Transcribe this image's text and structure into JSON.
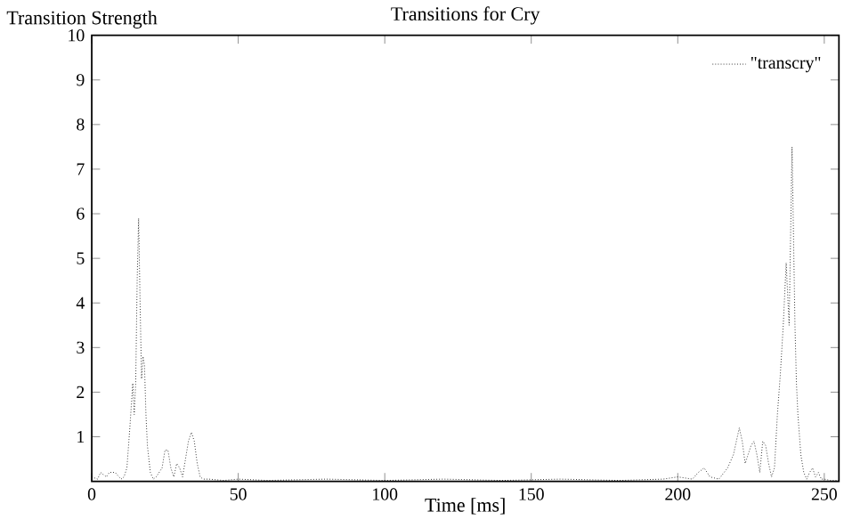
{
  "chart_data": {
    "type": "line",
    "title": "Transitions for Cry",
    "ylabel": "Transition Strength",
    "xlabel": "Time [ms]",
    "xlim": [
      0,
      255
    ],
    "ylim": [
      0,
      10
    ],
    "xticks": [
      0,
      50,
      100,
      150,
      200,
      250
    ],
    "yticks": [
      {
        "value": 0,
        "label": null
      },
      1,
      2,
      3,
      4,
      5,
      6,
      7,
      8,
      9,
      10
    ],
    "legend": "top right",
    "line_style": "dotted",
    "series": [
      {
        "name": "\"transcry\"",
        "color": "#000000",
        "x": [
          0,
          2,
          3,
          5,
          6,
          8,
          10,
          11,
          12,
          13,
          14,
          14.5,
          15,
          15.5,
          16,
          16.5,
          17,
          17.5,
          18,
          18.5,
          19,
          20,
          21,
          22,
          24,
          25,
          26,
          27,
          28,
          29,
          30,
          31,
          32,
          33,
          34,
          35,
          36,
          37,
          38,
          40,
          45,
          50,
          60,
          80,
          100,
          120,
          140,
          160,
          180,
          195,
          200,
          205,
          207,
          209,
          211,
          214,
          217,
          219,
          221,
          222,
          223,
          225,
          226,
          227,
          228,
          229,
          230,
          231,
          232,
          233,
          234,
          235,
          236,
          237,
          237.5,
          238,
          238.5,
          239,
          239.5,
          240,
          240.5,
          241,
          242,
          243,
          244,
          245,
          246,
          247,
          248,
          249,
          250,
          252,
          255
        ],
        "values": [
          0.1,
          0.05,
          0.2,
          0.1,
          0.2,
          0.2,
          0.05,
          0.1,
          0.3,
          1.2,
          2.2,
          1.5,
          2.2,
          4.5,
          5.9,
          4.0,
          2.3,
          2.8,
          2.6,
          1.5,
          0.8,
          0.2,
          0.05,
          0.1,
          0.3,
          0.7,
          0.7,
          0.3,
          0.1,
          0.4,
          0.3,
          0.1,
          0.5,
          0.9,
          1.1,
          0.9,
          0.4,
          0.1,
          0.05,
          0.05,
          0.02,
          0.05,
          0.02,
          0.05,
          0.02,
          0.05,
          0.02,
          0.05,
          0.02,
          0.05,
          0.1,
          0.05,
          0.2,
          0.3,
          0.1,
          0.05,
          0.3,
          0.6,
          1.2,
          0.9,
          0.4,
          0.8,
          0.9,
          0.6,
          0.2,
          0.9,
          0.8,
          0.4,
          0.1,
          0.3,
          1.5,
          2.4,
          3.5,
          4.9,
          4.2,
          3.5,
          5.5,
          7.5,
          5.5,
          3.5,
          2.2,
          1.5,
          0.6,
          0.2,
          0.05,
          0.2,
          0.3,
          0.1,
          0.2,
          0.05,
          0.05,
          0.02,
          0.02
        ]
      }
    ]
  }
}
